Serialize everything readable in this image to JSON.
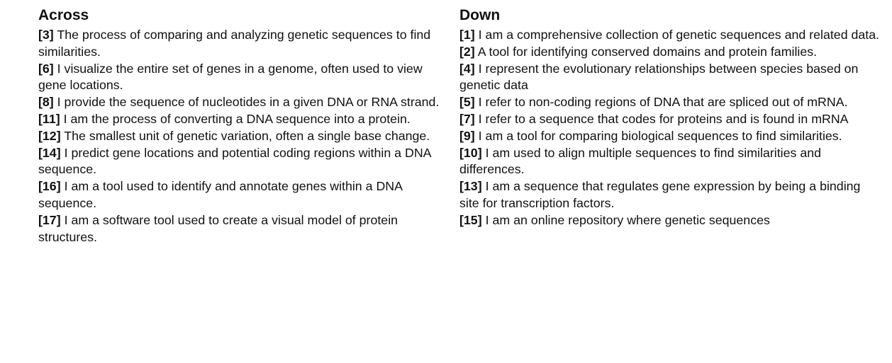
{
  "across": {
    "title": "Across",
    "clues": [
      {
        "num": "[3]",
        "text": " The process of comparing and analyzing genetic sequences to find similarities."
      },
      {
        "num": "[6]",
        "text": " I visualize the entire set of genes in a genome, often used to view gene locations."
      },
      {
        "num": "[8]",
        "text": " I provide the sequence of nucleotides in a given DNA or RNA strand."
      },
      {
        "num": "[11]",
        "text": " I am the process of converting a DNA sequence into a protein."
      },
      {
        "num": "[12]",
        "text": " The smallest unit of genetic variation, often a single base change."
      },
      {
        "num": "[14]",
        "text": " I predict gene locations and potential coding regions within a DNA sequence."
      },
      {
        "num": "[16]",
        "text": " I am a tool used to identify and annotate genes within a DNA sequence."
      },
      {
        "num": "[17]",
        "text": " I am a software tool used to create a visual model of protein structures."
      }
    ]
  },
  "down": {
    "title": "Down",
    "clues": [
      {
        "num": "[1]",
        "text": " I am a comprehensive collection of genetic sequences and related data."
      },
      {
        "num": "[2]",
        "text": " A tool for identifying conserved domains and protein families."
      },
      {
        "num": "[4]",
        "text": " I represent the evolutionary relationships between species based on genetic data"
      },
      {
        "num": "[5]",
        "text": " I refer to non-coding regions of DNA that are spliced out of mRNA."
      },
      {
        "num": "[7]",
        "text": " I refer to a sequence that codes for proteins and is found in mRNA"
      },
      {
        "num": "[9]",
        "text": " I am a tool for comparing biological sequences to find similarities."
      },
      {
        "num": "[10]",
        "text": " I am used to align multiple sequences to find similarities and differences."
      },
      {
        "num": "[13]",
        "text": " I am a sequence that regulates gene expression by being a binding site for transcription factors."
      },
      {
        "num": "[15]",
        "text": " I am an online repository where genetic sequences"
      }
    ]
  }
}
